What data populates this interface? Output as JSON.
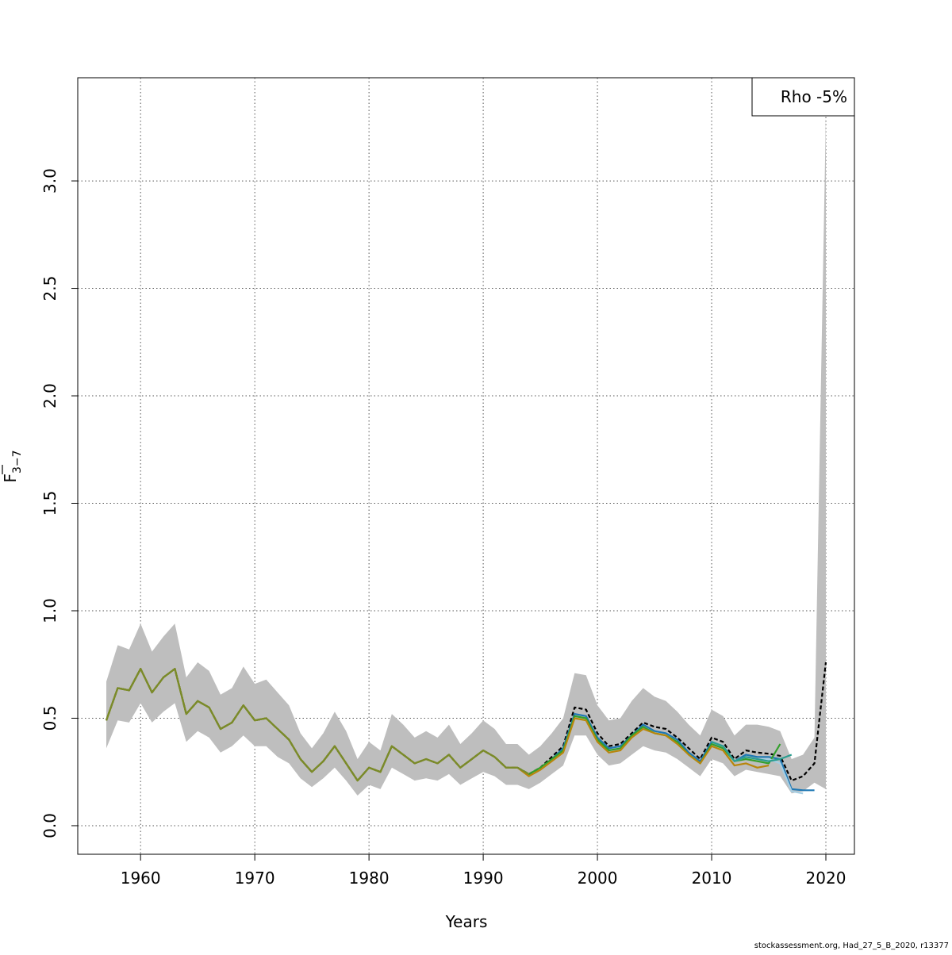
{
  "chart_data": {
    "type": "line",
    "title": "",
    "xlabel": "Years",
    "ylabel_main": "F",
    "ylabel_sub": "3−7",
    "xlim": [
      1954.5,
      2022.5
    ],
    "ylim": [
      -0.133,
      3.48
    ],
    "x_ticks": [
      1960,
      1970,
      1980,
      1990,
      2000,
      2010,
      2020
    ],
    "y_ticks": [
      "0.0",
      "0.5",
      "1.0",
      "1.5",
      "2.0",
      "2.5",
      "3.0"
    ],
    "grid": true,
    "legend": {
      "position": "top-right",
      "entries": [
        "Rho -5%"
      ]
    },
    "band": {
      "x": [
        1957,
        1958,
        1959,
        1960,
        1961,
        1962,
        1963,
        1964,
        1965,
        1966,
        1967,
        1968,
        1969,
        1970,
        1971,
        1972,
        1973,
        1974,
        1975,
        1976,
        1977,
        1978,
        1979,
        1980,
        1981,
        1982,
        1983,
        1984,
        1985,
        1986,
        1987,
        1988,
        1989,
        1990,
        1991,
        1992,
        1993,
        1994,
        1995,
        1996,
        1997,
        1998,
        1999,
        2000,
        2001,
        2002,
        2003,
        2004,
        2005,
        2006,
        2007,
        2008,
        2009,
        2010,
        2011,
        2012,
        2013,
        2014,
        2015,
        2016,
        2017,
        2018,
        2019,
        2020
      ],
      "upper": [
        0.67,
        0.84,
        0.82,
        0.94,
        0.81,
        0.88,
        0.94,
        0.69,
        0.76,
        0.72,
        0.61,
        0.64,
        0.74,
        0.66,
        0.68,
        0.62,
        0.56,
        0.43,
        0.36,
        0.43,
        0.53,
        0.44,
        0.31,
        0.39,
        0.35,
        0.52,
        0.47,
        0.41,
        0.44,
        0.41,
        0.47,
        0.38,
        0.43,
        0.49,
        0.45,
        0.38,
        0.38,
        0.33,
        0.37,
        0.43,
        0.5,
        0.71,
        0.7,
        0.56,
        0.49,
        0.5,
        0.58,
        0.64,
        0.6,
        0.58,
        0.53,
        0.47,
        0.42,
        0.54,
        0.51,
        0.42,
        0.47,
        0.47,
        0.46,
        0.44,
        0.31,
        0.33,
        0.41,
        3.3
      ],
      "lower": [
        0.36,
        0.49,
        0.48,
        0.57,
        0.48,
        0.53,
        0.57,
        0.39,
        0.44,
        0.41,
        0.34,
        0.37,
        0.42,
        0.37,
        0.37,
        0.32,
        0.29,
        0.22,
        0.18,
        0.22,
        0.27,
        0.21,
        0.14,
        0.19,
        0.17,
        0.27,
        0.24,
        0.21,
        0.22,
        0.21,
        0.24,
        0.19,
        0.22,
        0.25,
        0.23,
        0.19,
        0.19,
        0.17,
        0.2,
        0.24,
        0.28,
        0.42,
        0.42,
        0.33,
        0.28,
        0.29,
        0.33,
        0.37,
        0.35,
        0.34,
        0.31,
        0.27,
        0.23,
        0.31,
        0.29,
        0.23,
        0.26,
        0.25,
        0.24,
        0.23,
        0.15,
        0.16,
        0.2,
        0.17
      ]
    },
    "series": [
      {
        "name": "",
        "color": "#000000",
        "dashed": true,
        "x": [
          1957,
          1958,
          1959,
          1960,
          1961,
          1962,
          1963,
          1964,
          1965,
          1966,
          1967,
          1968,
          1969,
          1970,
          1971,
          1972,
          1973,
          1974,
          1975,
          1976,
          1977,
          1978,
          1979,
          1980,
          1981,
          1982,
          1983,
          1984,
          1985,
          1986,
          1987,
          1988,
          1989,
          1990,
          1991,
          1992,
          1993,
          1994,
          1995,
          1996,
          1997,
          1998,
          1999,
          2000,
          2001,
          2002,
          2003,
          2004,
          2005,
          2006,
          2007,
          2008,
          2009,
          2010,
          2011,
          2012,
          2013,
          2014,
          2015,
          2016,
          2017,
          2018,
          2019,
          2020
        ],
        "y": [
          0.49,
          0.64,
          0.63,
          0.73,
          0.62,
          0.69,
          0.73,
          0.52,
          0.58,
          0.55,
          0.45,
          0.48,
          0.56,
          0.49,
          0.5,
          0.45,
          0.4,
          0.31,
          0.25,
          0.3,
          0.37,
          0.29,
          0.21,
          0.27,
          0.25,
          0.37,
          0.33,
          0.29,
          0.31,
          0.29,
          0.33,
          0.27,
          0.31,
          0.35,
          0.32,
          0.27,
          0.27,
          0.24,
          0.27,
          0.32,
          0.37,
          0.55,
          0.54,
          0.43,
          0.37,
          0.38,
          0.43,
          0.48,
          0.46,
          0.45,
          0.41,
          0.36,
          0.31,
          0.41,
          0.39,
          0.31,
          0.35,
          0.34,
          0.335,
          0.325,
          0.21,
          0.23,
          0.29,
          0.76
        ]
      },
      {
        "name": "",
        "color": "#1f78b4",
        "dashed": false,
        "x": [
          1996,
          1997,
          1998,
          1999,
          2000,
          2001,
          2002,
          2003,
          2004,
          2005,
          2006,
          2007,
          2008,
          2009,
          2010,
          2011,
          2012,
          2013,
          2014,
          2015,
          2016,
          2017,
          2018,
          2019
        ],
        "y": [
          0.31,
          0.36,
          0.52,
          0.51,
          0.41,
          0.36,
          0.37,
          0.42,
          0.47,
          0.44,
          0.43,
          0.4,
          0.34,
          0.3,
          0.39,
          0.37,
          0.3,
          0.33,
          0.32,
          0.32,
          0.31,
          0.17,
          0.165,
          0.165
        ]
      },
      {
        "name": "",
        "color": "#33a02c",
        "dashed": false,
        "x": [
          1957,
          1958,
          1959,
          1960,
          1961,
          1962,
          1963,
          1964,
          1965,
          1966,
          1967,
          1968,
          1969,
          1970,
          1971,
          1972,
          1973,
          1974,
          1975,
          1976,
          1977,
          1978,
          1979,
          1980,
          1981,
          1982,
          1983,
          1984,
          1985,
          1986,
          1987,
          1988,
          1989,
          1990,
          1991,
          1992,
          1993,
          1994,
          1995,
          1996,
          1997,
          1998,
          1999,
          2000,
          2001,
          2002,
          2003,
          2004,
          2005,
          2006,
          2007,
          2008,
          2009,
          2010,
          2011,
          2012,
          2013,
          2014,
          2015,
          2016
        ],
        "y": [
          0.49,
          0.64,
          0.63,
          0.73,
          0.62,
          0.69,
          0.73,
          0.52,
          0.58,
          0.55,
          0.45,
          0.48,
          0.56,
          0.49,
          0.5,
          0.45,
          0.4,
          0.31,
          0.25,
          0.3,
          0.37,
          0.29,
          0.21,
          0.27,
          0.25,
          0.37,
          0.33,
          0.29,
          0.31,
          0.29,
          0.33,
          0.27,
          0.31,
          0.35,
          0.32,
          0.27,
          0.27,
          0.24,
          0.27,
          0.31,
          0.35,
          0.51,
          0.5,
          0.4,
          0.35,
          0.36,
          0.42,
          0.46,
          0.43,
          0.42,
          0.39,
          0.33,
          0.29,
          0.38,
          0.36,
          0.3,
          0.31,
          0.3,
          0.29,
          0.38
        ]
      },
      {
        "name": "",
        "color": "#a6cee3",
        "dashed": false,
        "x": [
          2010,
          2011,
          2012,
          2013,
          2014,
          2015,
          2016,
          2017,
          2018
        ],
        "y": [
          0.39,
          0.37,
          0.3,
          0.32,
          0.31,
          0.31,
          0.29,
          0.16,
          0.15
        ]
      },
      {
        "name": "",
        "color": "#2a9d8f",
        "dashed": false,
        "x": [
          2010,
          2011,
          2012,
          2013,
          2014,
          2015,
          2016,
          2017
        ],
        "y": [
          0.39,
          0.37,
          0.3,
          0.32,
          0.31,
          0.3,
          0.31,
          0.33
        ]
      },
      {
        "name": "",
        "color": "#b8860b",
        "dashed": false,
        "x": [
          1957,
          1958,
          1959,
          1960,
          1961,
          1962,
          1963,
          1964,
          1965,
          1966,
          1967,
          1968,
          1969,
          1970,
          1971,
          1972,
          1973,
          1974,
          1975,
          1976,
          1977,
          1978,
          1979,
          1980,
          1981,
          1982,
          1983,
          1984,
          1985,
          1986,
          1987,
          1988,
          1989,
          1990,
          1991,
          1992,
          1993,
          1994,
          1995,
          1996,
          1997,
          1998,
          1999,
          2000,
          2001,
          2002,
          2003,
          2004,
          2005,
          2006,
          2007,
          2008,
          2009,
          2010,
          2011,
          2012,
          2013,
          2014,
          2015
        ],
        "y": [
          0.49,
          0.64,
          0.63,
          0.73,
          0.62,
          0.69,
          0.73,
          0.52,
          0.58,
          0.55,
          0.45,
          0.48,
          0.56,
          0.49,
          0.5,
          0.45,
          0.4,
          0.31,
          0.25,
          0.3,
          0.37,
          0.29,
          0.21,
          0.27,
          0.25,
          0.37,
          0.33,
          0.29,
          0.31,
          0.29,
          0.33,
          0.27,
          0.31,
          0.35,
          0.32,
          0.27,
          0.27,
          0.23,
          0.26,
          0.3,
          0.34,
          0.5,
          0.49,
          0.39,
          0.34,
          0.35,
          0.41,
          0.45,
          0.43,
          0.42,
          0.38,
          0.33,
          0.29,
          0.37,
          0.35,
          0.28,
          0.29,
          0.27,
          0.28
        ]
      },
      {
        "name": "",
        "color": "#7a8b2a",
        "dashed": false,
        "x": [
          1957,
          1958,
          1959,
          1960,
          1961,
          1962,
          1963,
          1964,
          1965,
          1966,
          1967,
          1968,
          1969,
          1970,
          1971,
          1972,
          1973,
          1974,
          1975,
          1976,
          1977,
          1978,
          1979,
          1980,
          1981,
          1982,
          1983,
          1984,
          1985,
          1986,
          1987,
          1988,
          1989,
          1990,
          1991,
          1992,
          1993,
          1994
        ],
        "y": [
          0.49,
          0.64,
          0.63,
          0.73,
          0.62,
          0.69,
          0.73,
          0.52,
          0.58,
          0.55,
          0.45,
          0.48,
          0.56,
          0.49,
          0.5,
          0.45,
          0.4,
          0.31,
          0.25,
          0.3,
          0.37,
          0.29,
          0.21,
          0.27,
          0.25,
          0.37,
          0.33,
          0.29,
          0.31,
          0.29,
          0.33,
          0.27,
          0.31,
          0.35,
          0.32,
          0.27,
          0.27,
          0.24
        ]
      }
    ]
  },
  "footer": "stockassessment.org, Had_27_5_B_2020, r13377"
}
